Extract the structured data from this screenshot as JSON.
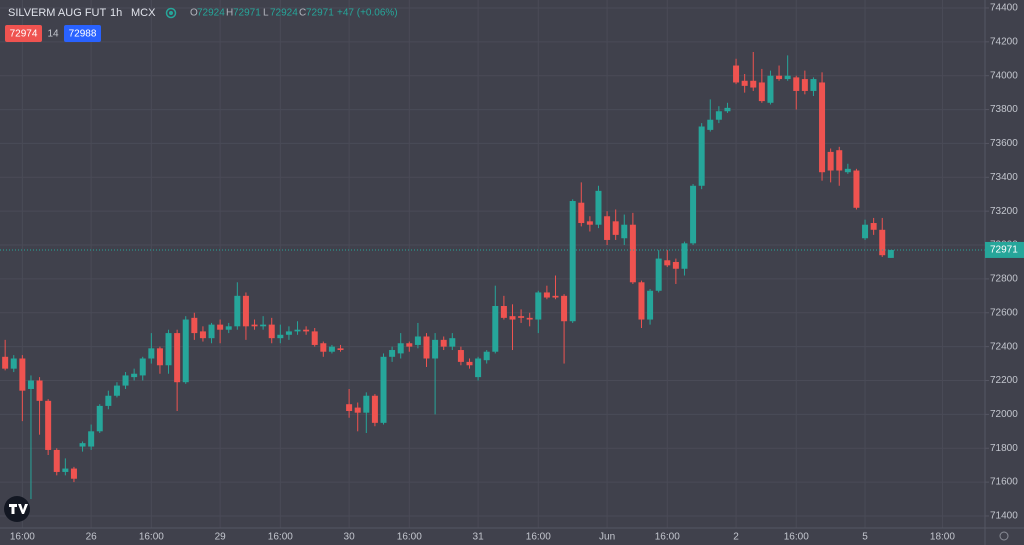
{
  "chart_data": {
    "type": "candlestick",
    "title": "SILVERM AUG FUT",
    "interval": "1h",
    "exchange": "MCX",
    "ohlc_prefixes": [
      "O",
      "H",
      "L",
      "C"
    ],
    "change": "+47 (+0.06%)",
    "bid": 72974,
    "spread": 14,
    "ask": 72988,
    "up_color": "#26a69a",
    "down_color": "#ef5350",
    "grid": true,
    "open": [
      72340,
      72270,
      72330,
      72150,
      72200,
      72080,
      71790,
      71660,
      71680,
      71810,
      71810,
      71900,
      72050,
      72110,
      72170,
      72220,
      72230,
      72330,
      72390,
      72290,
      72480,
      72190,
      72570,
      72490,
      72450,
      72530,
      72500,
      72520,
      72700,
      72530,
      72520,
      72530,
      72450,
      72470,
      72490,
      72500,
      72490,
      72420,
      72370,
      72390,
      72060,
      72040,
      72010,
      72110,
      71950,
      72340,
      72360,
      72420,
      72410,
      72460,
      72330,
      72440,
      72400,
      72380,
      72310,
      72220,
      72320,
      72370,
      72640,
      72580,
      72580,
      72570,
      72560,
      72720,
      72700,
      72700,
      72550,
      73250,
      73140,
      73120,
      73170,
      73140,
      73040,
      73120,
      72780,
      72560,
      72730,
      72910,
      72900,
      72860,
      73010,
      73350,
      73680,
      73740,
      73790,
      74060,
      73970,
      73970,
      73960,
      73840,
      74000,
      73980,
      73990,
      73980,
      73910,
      73960,
      73550,
      73560,
      73430,
      73440,
      73040,
      73130,
      73090,
      72924
    ],
    "high": [
      72440,
      72350,
      72350,
      72230,
      72220,
      72090,
      71800,
      71740,
      71690,
      71840,
      71940,
      72060,
      72140,
      72190,
      72250,
      72270,
      72340,
      72480,
      72400,
      72500,
      72500,
      72580,
      72600,
      72520,
      72540,
      72560,
      72540,
      72780,
      72720,
      72560,
      72580,
      72570,
      72530,
      72520,
      72550,
      72520,
      72510,
      72430,
      72410,
      72410,
      72150,
      72070,
      72130,
      72120,
      72360,
      72400,
      72480,
      72430,
      72540,
      72480,
      72480,
      72460,
      72480,
      72400,
      72330,
      72340,
      72380,
      72760,
      72700,
      72650,
      72620,
      72600,
      72730,
      72760,
      72820,
      72710,
      73270,
      73370,
      73170,
      73350,
      73200,
      73210,
      73180,
      73190,
      72790,
      72740,
      72970,
      72970,
      72920,
      73020,
      73360,
      73720,
      73860,
      73820,
      73840,
      74100,
      74010,
      74140,
      74040,
      74030,
      74060,
      74120,
      74000,
      74030,
      73990,
      74020,
      73570,
      73580,
      73480,
      73450,
      73150,
      73160,
      73160,
      72971
    ],
    "low": [
      72260,
      72250,
      71960,
      71500,
      71880,
      71760,
      71640,
      71640,
      71600,
      71780,
      71790,
      71890,
      72030,
      72100,
      72150,
      72200,
      72200,
      72300,
      72240,
      72240,
      72020,
      72180,
      72440,
      72430,
      72420,
      72420,
      72480,
      72500,
      72440,
      72500,
      72500,
      72420,
      72420,
      72440,
      72470,
      72470,
      72400,
      72340,
      72360,
      72370,
      71980,
      71900,
      71890,
      71930,
      71940,
      72310,
      72330,
      72370,
      72390,
      72280,
      72000,
      72380,
      72380,
      72290,
      72270,
      72200,
      72300,
      72360,
      72560,
      72380,
      72540,
      72520,
      72480,
      72680,
      72680,
      72300,
      72540,
      73110,
      73080,
      73100,
      73000,
      73030,
      73000,
      72770,
      72510,
      72530,
      72720,
      72870,
      72770,
      72820,
      73000,
      73330,
      73670,
      73720,
      73780,
      73950,
      73900,
      73910,
      73840,
      73830,
      73970,
      73970,
      73800,
      73890,
      73880,
      73380,
      73370,
      73350,
      73420,
      73210,
      73030,
      73060,
      72930,
      72924
    ],
    "close": [
      72270,
      72330,
      72140,
      72200,
      72080,
      71790,
      71660,
      71680,
      71620,
      71830,
      71900,
      72050,
      72110,
      72170,
      72230,
      72240,
      72330,
      72390,
      72290,
      72480,
      72190,
      72560,
      72480,
      72450,
      72530,
      72500,
      72520,
      72700,
      72520,
      72520,
      72530,
      72450,
      72470,
      72490,
      72500,
      72490,
      72410,
      72370,
      72400,
      72380,
      72020,
      72010,
      72110,
      71950,
      72340,
      72380,
      72420,
      72400,
      72460,
      72330,
      72440,
      72400,
      72450,
      72310,
      72290,
      72330,
      72370,
      72640,
      72570,
      72560,
      72570,
      72560,
      72720,
      72690,
      72690,
      72550,
      73260,
      73130,
      73120,
      73320,
      73030,
      73060,
      73120,
      72780,
      72560,
      72730,
      72920,
      72880,
      72860,
      73010,
      73350,
      73700,
      73740,
      73790,
      73810,
      73960,
      73940,
      73930,
      73850,
      74000,
      73980,
      74000,
      73910,
      73910,
      73980,
      73430,
      73440,
      73440,
      73450,
      73220,
      73120,
      73090,
      72940,
      72971
    ],
    "xlim": [
      -0.6,
      113.95
    ],
    "xticks": [
      {
        "value": 2,
        "label": "16:00"
      },
      {
        "value": 10,
        "label": "26"
      },
      {
        "value": 17,
        "label": "16:00"
      },
      {
        "value": 25,
        "label": "29"
      },
      {
        "value": 32,
        "label": "16:00"
      },
      {
        "value": 40,
        "label": "30"
      },
      {
        "value": 47,
        "label": "16:00"
      },
      {
        "value": 55,
        "label": "31"
      },
      {
        "value": 62,
        "label": "16:00"
      },
      {
        "value": 70,
        "label": "Jun"
      },
      {
        "value": 77,
        "label": "16:00"
      },
      {
        "value": 85,
        "label": "2"
      },
      {
        "value": 92,
        "label": "16:00"
      },
      {
        "value": 100,
        "label": "5"
      },
      {
        "value": 109,
        "label": "18:00"
      }
    ],
    "ylim": [
      71329,
      74447
    ],
    "yticks": [
      71400,
      71600,
      71800,
      72000,
      72200,
      72400,
      72600,
      72800,
      73000,
      73200,
      73400,
      73600,
      73800,
      74000,
      74200,
      74400
    ]
  }
}
